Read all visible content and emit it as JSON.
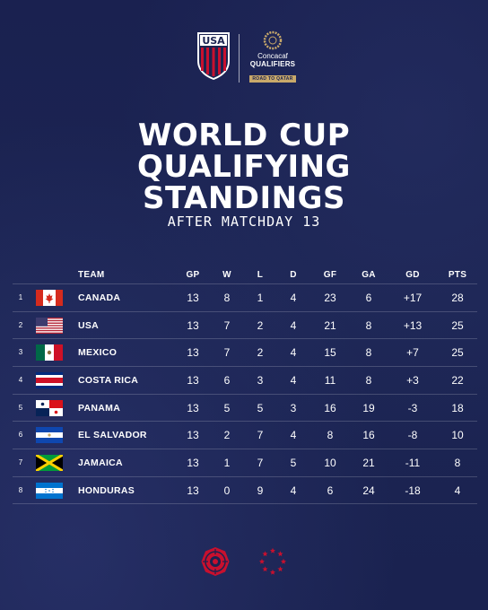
{
  "header": {
    "usa_logo_text": "USA",
    "concacaf_name": "Concacaf",
    "qualifiers_label": "QUALIFIERS",
    "road_label": "ROAD TO QATAR"
  },
  "title_lines": [
    "WORLD CUP",
    "QUALIFYING",
    "STANDINGS"
  ],
  "subtitle": "AFTER MATCHDAY 13",
  "columns": {
    "team": "TEAM",
    "gp": "GP",
    "w": "W",
    "l": "L",
    "d": "D",
    "gf": "GF",
    "ga": "GA",
    "gd": "GD",
    "pts": "PTS"
  },
  "rows": [
    {
      "rank": "1",
      "team": "CANADA",
      "flag": "canada-flag",
      "gp": "13",
      "w": "8",
      "l": "1",
      "d": "4",
      "gf": "23",
      "ga": "6",
      "gd": "+17",
      "pts": "28"
    },
    {
      "rank": "2",
      "team": "USA",
      "flag": "usa-flag",
      "gp": "13",
      "w": "7",
      "l": "2",
      "d": "4",
      "gf": "21",
      "ga": "8",
      "gd": "+13",
      "pts": "25"
    },
    {
      "rank": "3",
      "team": "MEXICO",
      "flag": "mexico-flag",
      "gp": "13",
      "w": "7",
      "l": "2",
      "d": "4",
      "gf": "15",
      "ga": "8",
      "gd": "+7",
      "pts": "25"
    },
    {
      "rank": "4",
      "team": "COSTA RICA",
      "flag": "costa-rica-flag",
      "gp": "13",
      "w": "6",
      "l": "3",
      "d": "4",
      "gf": "11",
      "ga": "8",
      "gd": "+3",
      "pts": "22"
    },
    {
      "rank": "5",
      "team": "PANAMA",
      "flag": "panama-flag",
      "gp": "13",
      "w": "5",
      "l": "5",
      "d": "3",
      "gf": "16",
      "ga": "19",
      "gd": "-3",
      "pts": "18"
    },
    {
      "rank": "6",
      "team": "EL SALVADOR",
      "flag": "el-salvador-flag",
      "gp": "13",
      "w": "2",
      "l": "7",
      "d": "4",
      "gf": "8",
      "ga": "16",
      "gd": "-8",
      "pts": "10"
    },
    {
      "rank": "7",
      "team": "JAMAICA",
      "flag": "jamaica-flag",
      "gp": "13",
      "w": "1",
      "l": "7",
      "d": "5",
      "gf": "10",
      "ga": "21",
      "gd": "-11",
      "pts": "8"
    },
    {
      "rank": "8",
      "team": "HONDURAS",
      "flag": "honduras-flag",
      "gp": "13",
      "w": "0",
      "l": "9",
      "d": "4",
      "gf": "6",
      "ga": "24",
      "gd": "-18",
      "pts": "4"
    }
  ],
  "colors": {
    "background": "#1b2350",
    "text": "#ffffff",
    "accent_red": "#c8102e",
    "gold": "#c9a96a"
  }
}
